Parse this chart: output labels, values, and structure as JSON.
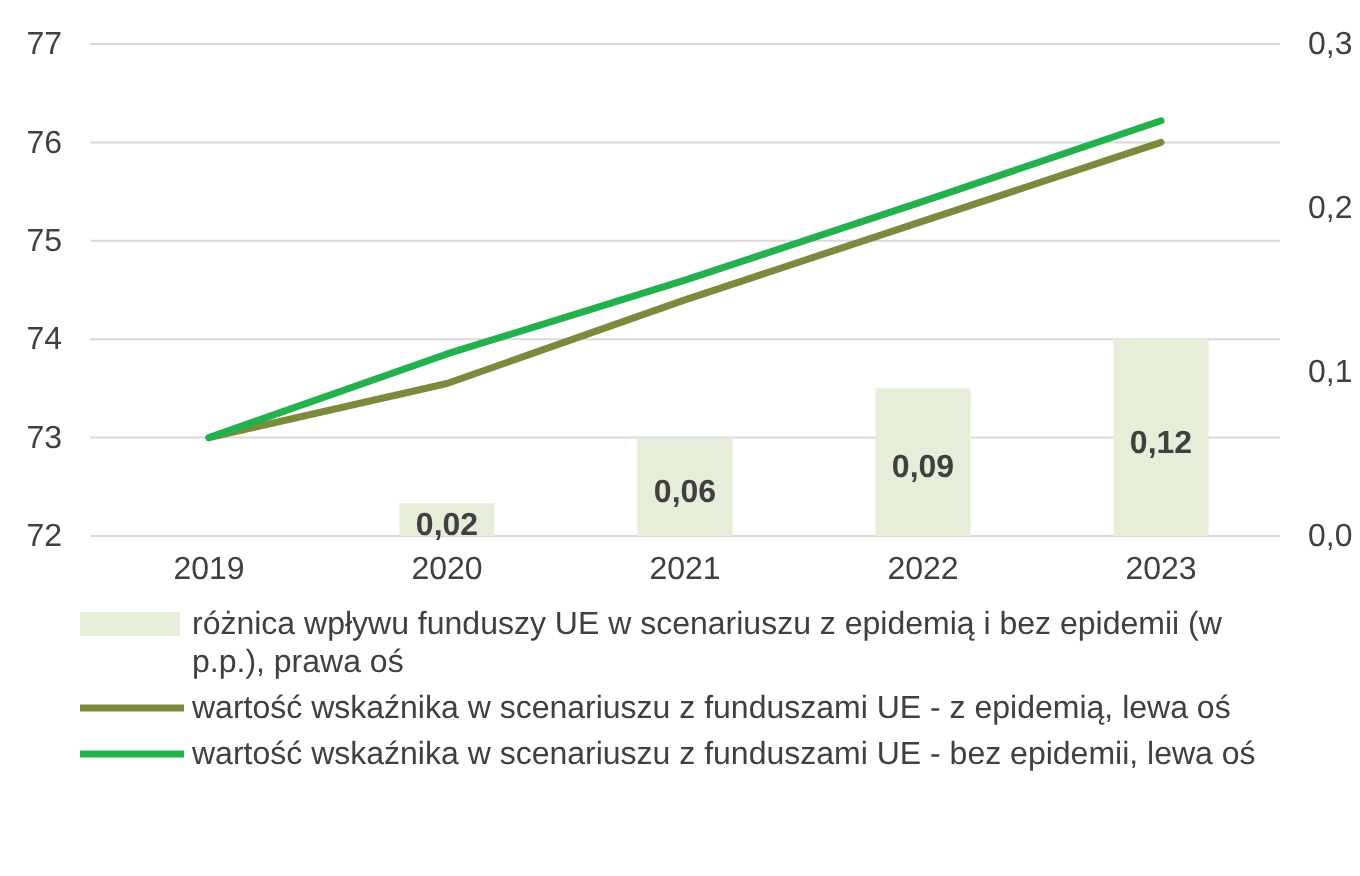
{
  "chart_data": {
    "type": "line",
    "categories": [
      "2019",
      "2020",
      "2021",
      "2022",
      "2023"
    ],
    "series": [
      {
        "type": "bar",
        "axis": "y2",
        "name": "różnica wpływu funduszy UE w scenariuszu z epidemią i bez epidemii (w p.p.), prawa oś",
        "color": "#e6eed9",
        "values": [
          null,
          0.02,
          0.06,
          0.09,
          0.12
        ],
        "value_labels": [
          null,
          "0,02",
          "0,06",
          "0,09",
          "0,12"
        ]
      },
      {
        "name": "wartość wskaźnika w scenariuszu z funduszami UE - z epidemią, lewa oś",
        "color": "#7b8b3d",
        "values": [
          73.0,
          73.55,
          74.4,
          75.2,
          76.0
        ]
      },
      {
        "name": "wartość wskaźnika w scenariuszu z funduszami UE - bez epidemii, lewa oś",
        "color": "#22b14c",
        "values": [
          73.0,
          73.85,
          74.6,
          75.4,
          76.22
        ]
      }
    ],
    "ylim": [
      72,
      77
    ],
    "yticks": [
      72,
      73,
      74,
      75,
      76,
      77
    ],
    "y2lim": [
      0,
      0.3
    ],
    "y2ticks": [
      {
        "value": 0,
        "label": "0,0"
      },
      {
        "value": 0.1,
        "label": "0,1"
      },
      {
        "value": 0.2,
        "label": "0,2"
      },
      {
        "value": 0.3,
        "label": "0,3"
      }
    ],
    "grid": "y",
    "legend": "bottom",
    "marker": "none",
    "line_style": "solid"
  }
}
